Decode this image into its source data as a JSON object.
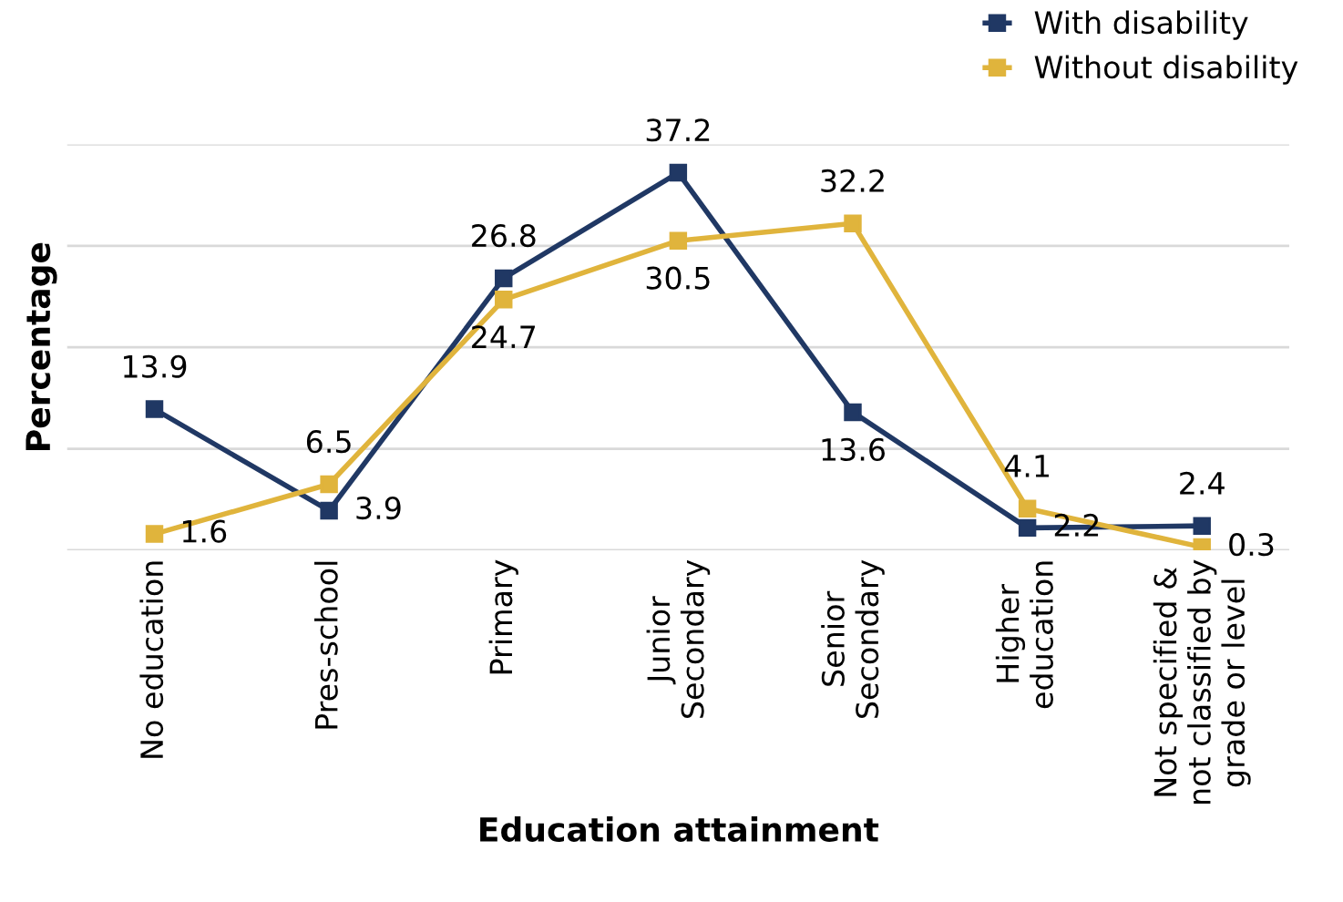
{
  "chart_data": {
    "type": "line",
    "xlabel": "Education attainment",
    "ylabel": "Percentage",
    "categories": [
      "No education",
      "Pres-school",
      "Primary",
      "Junior\nSecondary",
      "Senior\nSecondary",
      "Higher\neducation",
      "Not specified &\nnot classified by\ngrade or level"
    ],
    "series": [
      {
        "name": "With disability",
        "color": "#203864",
        "values": [
          13.9,
          3.9,
          26.8,
          37.2,
          13.6,
          2.2,
          2.4
        ]
      },
      {
        "name": "Without disability",
        "color": "#e0b43c",
        "values": [
          1.6,
          6.5,
          24.7,
          30.5,
          32.2,
          4.1,
          0.3
        ]
      }
    ],
    "ylim": [
      0,
      40
    ],
    "yticks": [
      0,
      10,
      20,
      30,
      40
    ],
    "tick_labels": "x",
    "grid": "y",
    "legend": "top right",
    "marker": "square",
    "line_style": "solid",
    "data_labels": true
  }
}
